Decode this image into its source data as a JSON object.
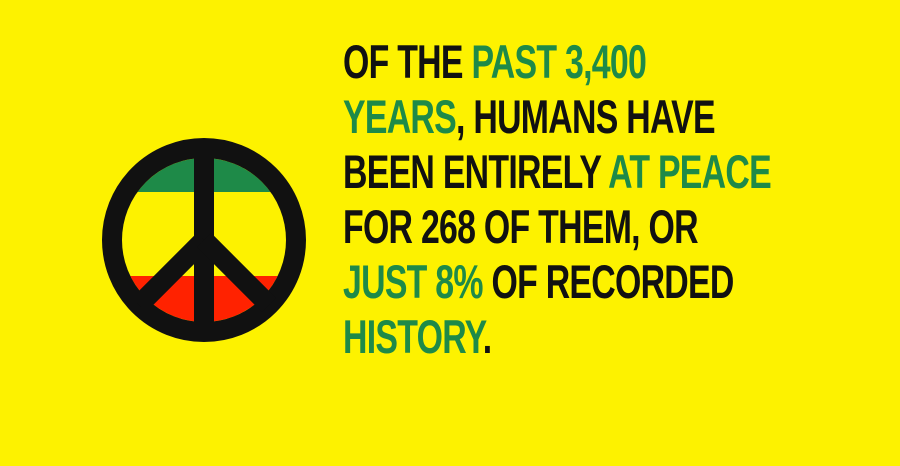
{
  "colors": {
    "background": "#fdf200",
    "highlight": "#1e8a48",
    "text": "#111111",
    "peace_green": "#1e8a48",
    "peace_yellow": "#fdf200",
    "peace_red": "#ff2200",
    "peace_outline": "#111111"
  },
  "graphic": {
    "icon": "peace-sign-icon"
  },
  "fact": {
    "lines": [
      [
        {
          "text": "OF THE ",
          "highlight": false
        },
        {
          "text": "PAST 3,400",
          "highlight": true
        }
      ],
      [
        {
          "text": "YEARS",
          "highlight": true
        },
        {
          "text": ", HUMANS HAVE",
          "highlight": false
        }
      ],
      [
        {
          "text": "BEEN ENTIRELY ",
          "highlight": false
        },
        {
          "text": "AT PEACE",
          "highlight": true
        }
      ],
      [
        {
          "text": "FOR 268 OF THEM, OR",
          "highlight": false
        }
      ],
      [
        {
          "text": "JUST 8%",
          "highlight": true
        },
        {
          "text": " OF RECORDED",
          "highlight": false
        }
      ],
      [
        {
          "text": "HISTORY",
          "highlight": true
        },
        {
          "text": ".",
          "highlight": false
        }
      ]
    ]
  }
}
